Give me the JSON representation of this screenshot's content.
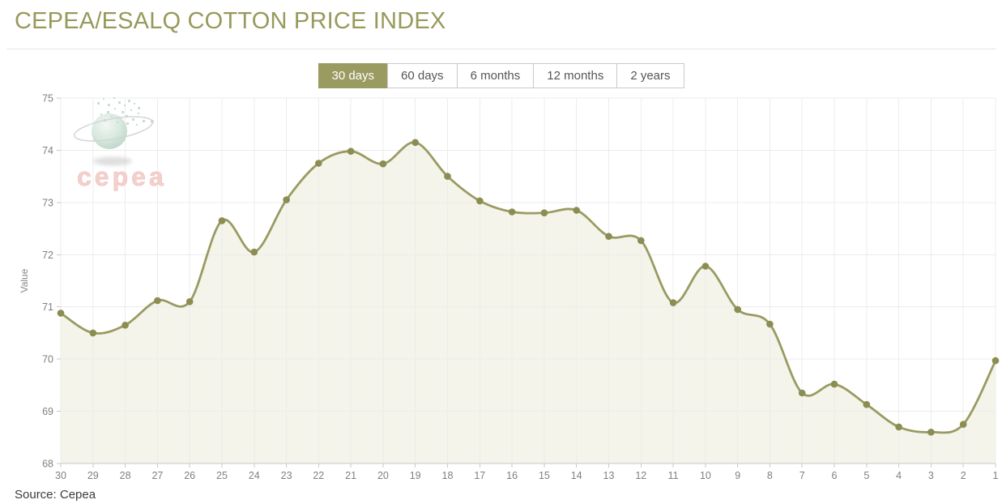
{
  "page": {
    "title": "CEPEA/ESALQ COTTON PRICE INDEX",
    "source": "Source: Cepea"
  },
  "tabs": {
    "items": [
      {
        "label": "30 days",
        "active": true
      },
      {
        "label": "60 days",
        "active": false
      },
      {
        "label": "6 months",
        "active": false
      },
      {
        "label": "12 months",
        "active": false
      },
      {
        "label": "2 years",
        "active": false
      }
    ]
  },
  "watermark": {
    "text": "cepea"
  },
  "theme": {
    "accent": "#9a9b60",
    "title_color": "#98995c",
    "tab_border": "#c9c9c9",
    "tab_text": "#555555"
  },
  "chart_data": {
    "type": "area",
    "title": "CEPEA/ESALQ COTTON PRICE INDEX",
    "x": [
      30,
      29,
      28,
      27,
      26,
      25,
      24,
      23,
      22,
      21,
      20,
      19,
      18,
      17,
      16,
      15,
      14,
      13,
      12,
      11,
      10,
      9,
      8,
      7,
      6,
      5,
      4,
      3,
      2,
      1
    ],
    "values": [
      70.88,
      70.5,
      70.65,
      71.12,
      71.1,
      72.65,
      72.05,
      73.05,
      73.75,
      73.98,
      73.74,
      74.15,
      73.5,
      73.03,
      72.82,
      72.8,
      72.85,
      72.35,
      72.27,
      71.08,
      71.78,
      70.95,
      70.67,
      69.35,
      69.52,
      69.13,
      68.7,
      68.6,
      68.75,
      69.97
    ],
    "xlabel": "",
    "ylabel": "Value",
    "ylim": [
      68,
      75
    ],
    "ytick_step": 1,
    "grid": true,
    "legend": false,
    "colors": {
      "line": "#9a9b62",
      "marker": "#8b8d52",
      "fill": "#f4f4ea",
      "grid": "#ececec",
      "axis": "#c9c9c9",
      "tick_text": "#7f7f7f",
      "axis_title": "#8a8a8a"
    }
  }
}
